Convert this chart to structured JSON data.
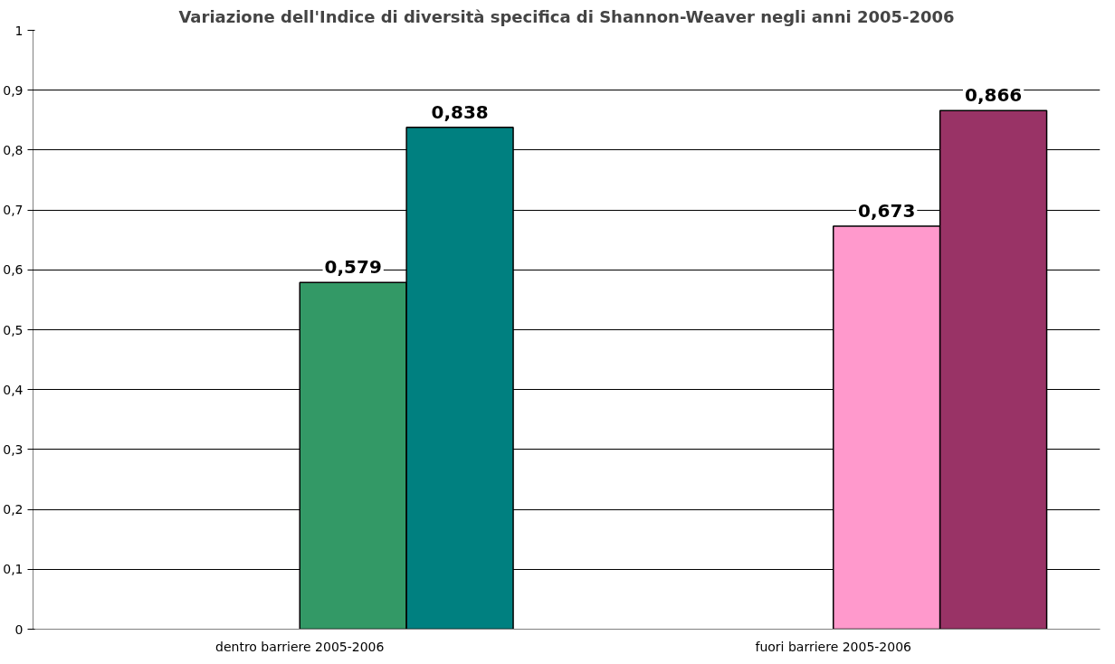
{
  "chart_data": {
    "type": "bar",
    "title": "Variazione dell'Indice di diversità specifica di Shannon-Weaver negli anni 2005-2006",
    "categories": [
      "dentro barriere 2005-2006",
      "fuori barriere 2005-2006"
    ],
    "series": [
      {
        "colors": [
          "#339966",
          "#ff99cc"
        ],
        "values": [
          0.579,
          0.673
        ],
        "value_labels": [
          "0,579",
          "0,673"
        ]
      },
      {
        "colors": [
          "#008080",
          "#993366"
        ],
        "values": [
          0.838,
          0.866
        ],
        "value_labels": [
          "0,838",
          "0,866"
        ]
      }
    ],
    "ylim": [
      0,
      1
    ],
    "yticks": [
      0,
      {
        "value": 0.1,
        "label": "0,1"
      },
      {
        "value": 0.2,
        "label": "0,2"
      },
      {
        "value": 0.3,
        "label": "0,3"
      },
      {
        "value": 0.4,
        "label": "0,4"
      },
      {
        "value": 0.5,
        "label": "0,5"
      },
      {
        "value": 0.6,
        "label": "0,6"
      },
      {
        "value": 0.7,
        "label": "0,7"
      },
      {
        "value": 0.8,
        "label": "0,8"
      },
      {
        "value": 0.9,
        "label": "0,9"
      },
      1
    ],
    "grid": "y"
  }
}
